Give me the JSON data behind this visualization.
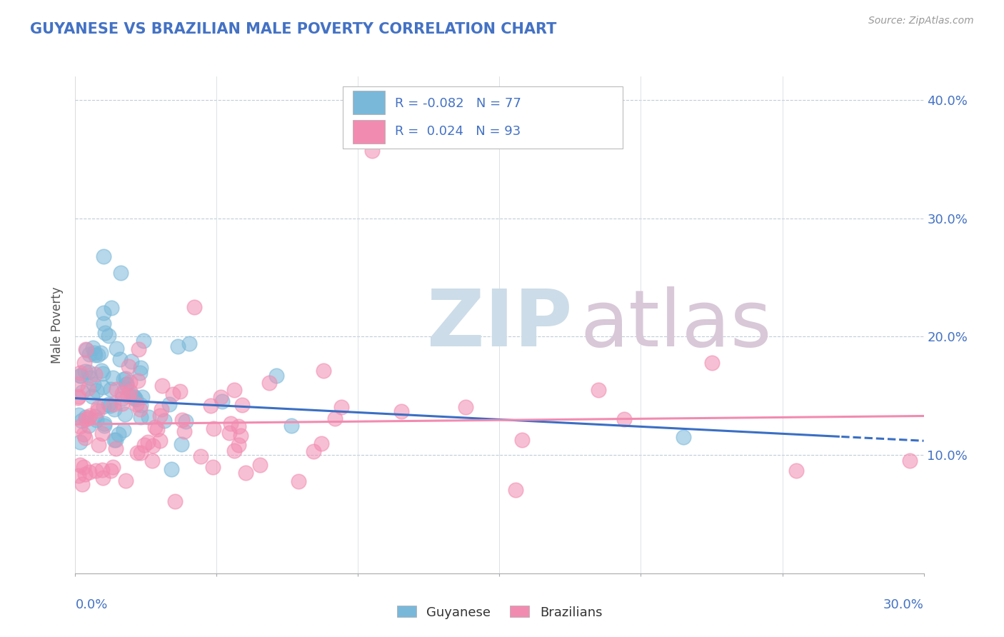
{
  "title": "GUYANESE VS BRAZILIAN MALE POVERTY CORRELATION CHART",
  "source_text": "Source: ZipAtlas.com",
  "ylabel": "Male Poverty",
  "xmin": 0.0,
  "xmax": 0.3,
  "ymin": 0.0,
  "ymax": 0.42,
  "yticks": [
    0.1,
    0.2,
    0.3,
    0.4
  ],
  "ytick_labels": [
    "10.0%",
    "20.0%",
    "30.0%",
    "40.0%"
  ],
  "guyanese_color": "#7ab8d9",
  "brazilian_color": "#f28bb0",
  "guyanese_R": -0.082,
  "guyanese_N": 77,
  "brazilian_R": 0.024,
  "brazilian_N": 93,
  "watermark_zip_color": "#ccdce8",
  "watermark_atlas_color": "#d8c8d8",
  "trend_guy_y0": 0.148,
  "trend_guy_y1": 0.112,
  "trend_braz_y0": 0.126,
  "trend_braz_y1": 0.133,
  "legend_R1": "R = -0.082",
  "legend_N1": "N = 77",
  "legend_R2": "R =  0.024",
  "legend_N2": "N = 93"
}
